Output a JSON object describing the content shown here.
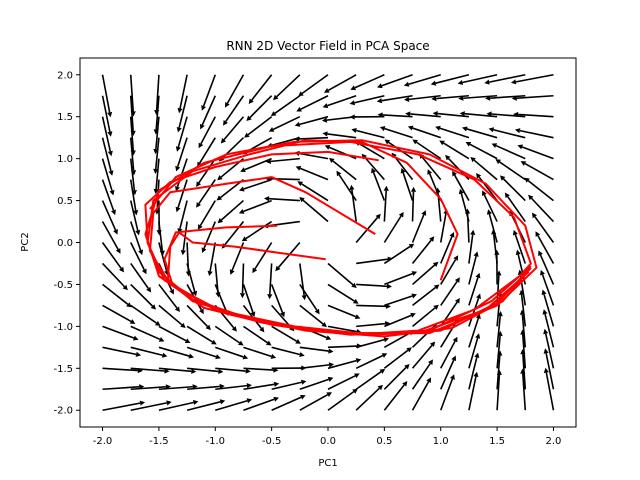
{
  "chart_data": {
    "type": "vector_field",
    "title": "RNN 2D Vector Field in PCA Space",
    "xlabel": "PC1",
    "ylabel": "PC2",
    "xlim": [
      -2.2,
      2.2
    ],
    "ylim": [
      -2.2,
      2.2
    ],
    "xticks": [
      "-2.0",
      "-1.5",
      "-1.0",
      "-0.5",
      "0.0",
      "0.5",
      "1.0",
      "1.5",
      "2.0"
    ],
    "yticks": [
      "-2.0",
      "-1.5",
      "-1.0",
      "-0.5",
      "0.0",
      "0.5",
      "1.0",
      "1.5",
      "2.0"
    ],
    "grid": false,
    "quiver": {
      "color": "#000000",
      "grid_x": [
        -2.0,
        -1.5,
        -1.0,
        -0.5,
        0.0,
        0.5,
        1.0,
        1.5,
        2.0
      ],
      "grid_y": [
        -2.0,
        -1.5,
        -1.0,
        -0.5,
        0.0,
        0.5,
        1.0,
        1.5,
        2.0
      ],
      "field": "limit cycle around the origin: radial pull toward radius ~1.2 plus counter-clockwise rotation"
    },
    "trajectories": {
      "color": "#ff0000",
      "paths": [
        [
          [
            1.0,
            -0.45
          ],
          [
            1.15,
            0.1
          ],
          [
            1.0,
            0.52
          ],
          [
            0.7,
            0.95
          ],
          [
            0.3,
            1.2
          ],
          [
            -0.2,
            1.22
          ],
          [
            -0.7,
            1.05
          ],
          [
            -1.2,
            0.85
          ],
          [
            -1.55,
            0.5
          ],
          [
            -1.6,
            0.0
          ],
          [
            -1.45,
            -0.45
          ],
          [
            -1.0,
            -0.8
          ],
          [
            -0.4,
            -1.0
          ],
          [
            0.2,
            -1.1
          ],
          [
            0.8,
            -1.05
          ],
          [
            1.3,
            -0.8
          ],
          [
            1.7,
            -0.4
          ],
          [
            1.8,
            -0.25
          ],
          [
            1.65,
            0.3
          ],
          [
            1.3,
            0.75
          ],
          [
            0.8,
            1.05
          ],
          [
            0.2,
            1.2
          ],
          [
            -0.5,
            1.15
          ],
          [
            -1.1,
            0.95
          ],
          [
            -1.5,
            0.62
          ],
          [
            -1.62,
            0.1
          ],
          [
            -1.5,
            -0.4
          ],
          [
            -1.1,
            -0.78
          ],
          [
            -0.5,
            -0.98
          ],
          [
            0.2,
            -1.1
          ],
          [
            0.9,
            -1.05
          ],
          [
            1.45,
            -0.7
          ],
          [
            1.8,
            -0.28
          ]
        ],
        [
          [
            0.42,
            0.1
          ],
          [
            -0.2,
            0.6
          ],
          [
            -0.5,
            0.78
          ],
          [
            -0.9,
            0.7
          ],
          [
            -1.4,
            0.6
          ],
          [
            -1.55,
            0.35
          ],
          [
            -1.58,
            -0.1
          ],
          [
            -1.4,
            -0.5
          ],
          [
            -0.9,
            -0.85
          ],
          [
            -0.2,
            -1.05
          ],
          [
            0.5,
            -1.12
          ],
          [
            1.1,
            -1.02
          ],
          [
            1.55,
            -0.7
          ],
          [
            1.8,
            -0.3
          ]
        ],
        [
          [
            -0.02,
            -0.2
          ],
          [
            -0.45,
            -0.12
          ],
          [
            -0.82,
            -0.05
          ],
          [
            -1.2,
            0.0
          ],
          [
            -1.32,
            0.12
          ],
          [
            -1.4,
            -0.05
          ],
          [
            -1.42,
            -0.45
          ],
          [
            -1.2,
            -0.7
          ],
          [
            -0.6,
            -0.95
          ],
          [
            0.1,
            -1.08
          ],
          [
            0.8,
            -1.08
          ],
          [
            1.4,
            -0.8
          ],
          [
            1.78,
            -0.35
          ]
        ],
        [
          [
            -0.45,
            0.2
          ],
          [
            -0.9,
            0.18
          ],
          [
            -1.35,
            0.12
          ],
          [
            -1.45,
            -0.2
          ],
          [
            -1.38,
            -0.5
          ],
          [
            -1.0,
            -0.8
          ],
          [
            -0.3,
            -1.0
          ],
          [
            0.4,
            -1.1
          ],
          [
            1.0,
            -1.05
          ],
          [
            1.5,
            -0.72
          ],
          [
            1.8,
            -0.3
          ]
        ],
        [
          [
            0.45,
            0.98
          ],
          [
            0.0,
            1.08
          ],
          [
            -0.5,
            1.05
          ],
          [
            -1.0,
            0.9
          ],
          [
            -1.4,
            0.72
          ],
          [
            -1.62,
            0.45
          ],
          [
            -1.6,
            0.0
          ],
          [
            -1.5,
            -0.35
          ],
          [
            -1.2,
            -0.68
          ],
          [
            -0.6,
            -0.95
          ],
          [
            0.1,
            -1.08
          ],
          [
            0.9,
            -1.08
          ],
          [
            1.5,
            -0.75
          ],
          [
            1.85,
            -0.3
          ],
          [
            1.75,
            0.2
          ],
          [
            1.4,
            0.7
          ],
          [
            0.9,
            1.05
          ],
          [
            0.3,
            1.22
          ],
          [
            -0.3,
            1.2
          ],
          [
            -0.9,
            1.05
          ],
          [
            -1.35,
            0.78
          ],
          [
            -1.58,
            0.4
          ]
        ]
      ]
    }
  }
}
